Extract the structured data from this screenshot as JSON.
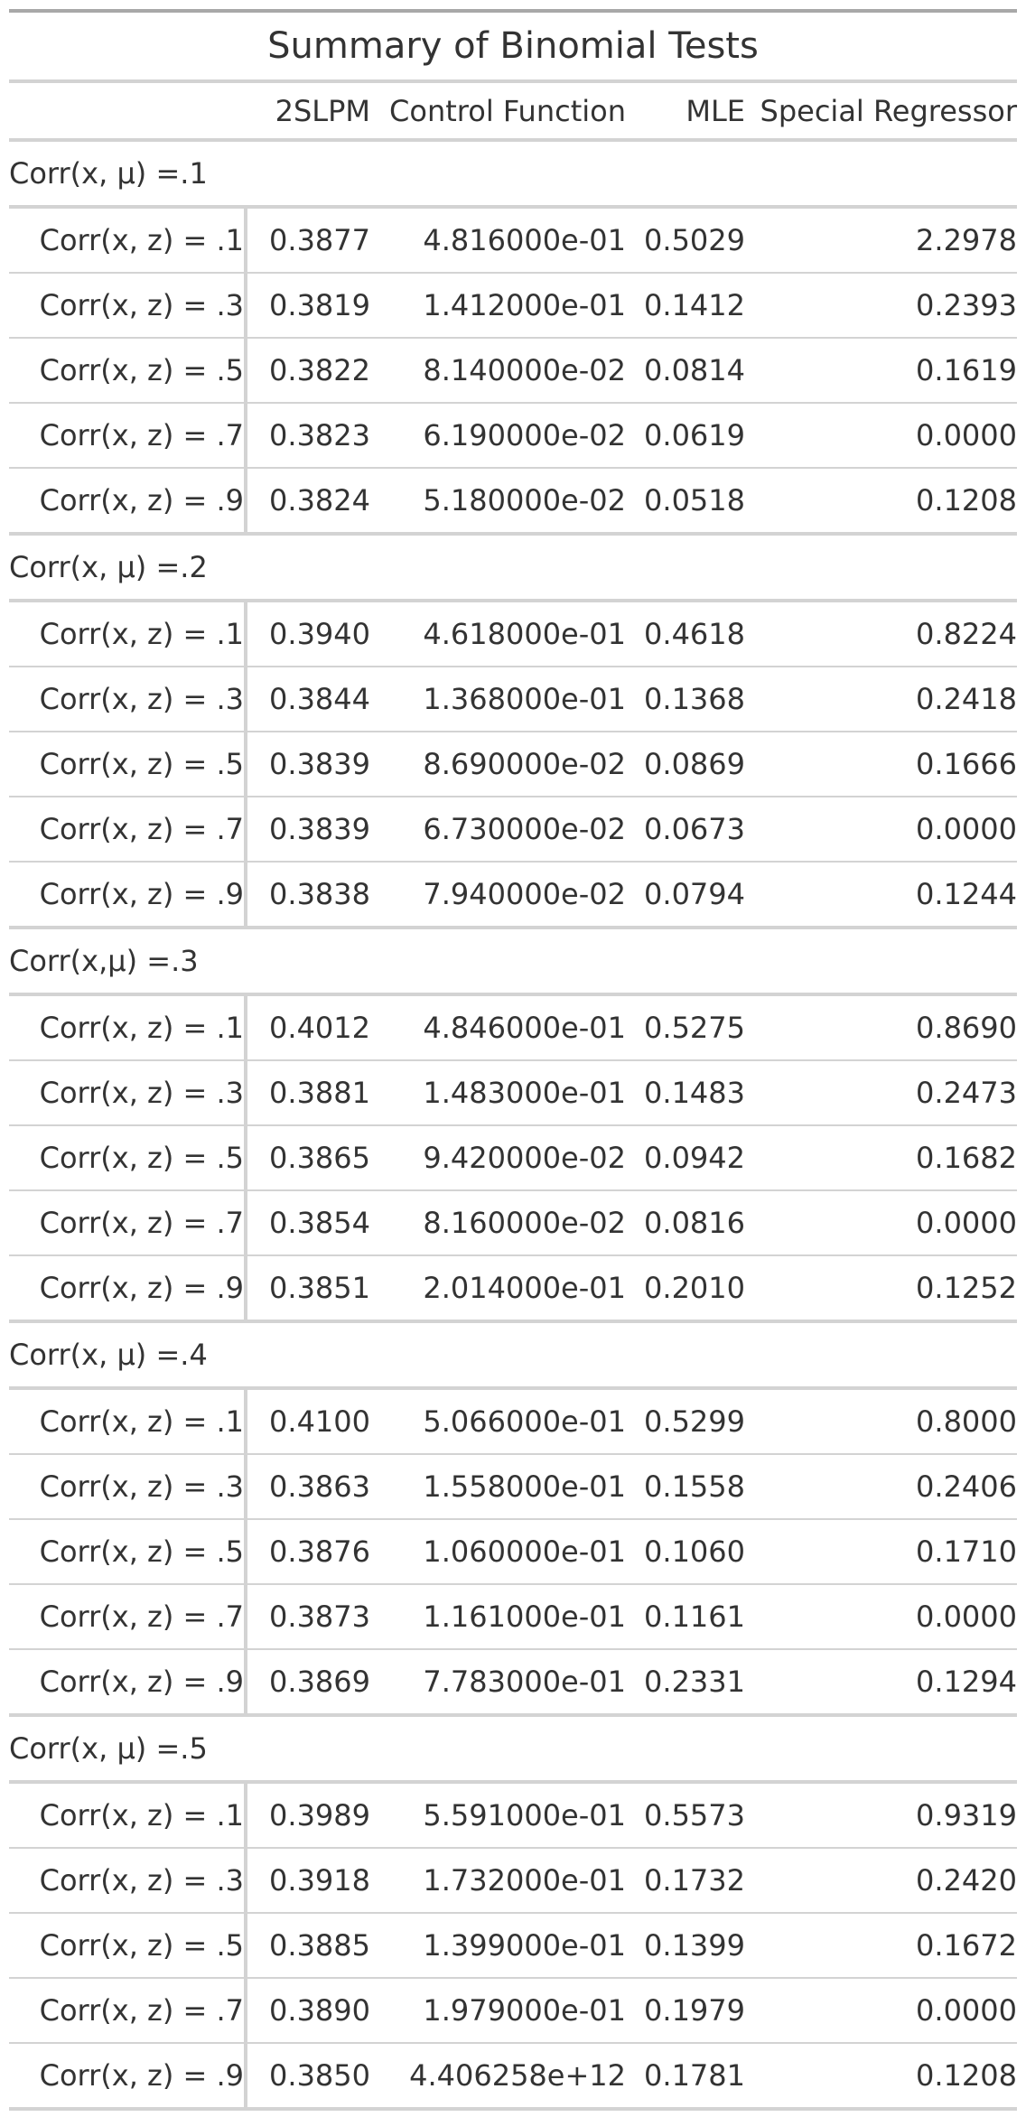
{
  "title": "Summary of Binomial Tests",
  "columns": [
    "",
    "2SLPM",
    "Control Function",
    "MLE",
    "Special Regressor"
  ],
  "groups": [
    {
      "label": "Corr(x, μ) =.1",
      "rows": [
        {
          "stub": "Corr(x, z) = .1",
          "values": [
            "0.3877",
            "4.816000e-01",
            "0.5029",
            "2.2978"
          ]
        },
        {
          "stub": "Corr(x, z) = .3",
          "values": [
            "0.3819",
            "1.412000e-01",
            "0.1412",
            "0.2393"
          ]
        },
        {
          "stub": "Corr(x, z) = .5",
          "values": [
            "0.3822",
            "8.140000e-02",
            "0.0814",
            "0.1619"
          ]
        },
        {
          "stub": "Corr(x, z) = .7",
          "values": [
            "0.3823",
            "6.190000e-02",
            "0.0619",
            "0.0000"
          ]
        },
        {
          "stub": "Corr(x, z) = .9",
          "values": [
            "0.3824",
            "5.180000e-02",
            "0.0518",
            "0.1208"
          ]
        }
      ]
    },
    {
      "label": "Corr(x, μ) =.2",
      "rows": [
        {
          "stub": "Corr(x, z) = .1",
          "values": [
            "0.3940",
            "4.618000e-01",
            "0.4618",
            "0.8224"
          ]
        },
        {
          "stub": "Corr(x, z) = .3",
          "values": [
            "0.3844",
            "1.368000e-01",
            "0.1368",
            "0.2418"
          ]
        },
        {
          "stub": "Corr(x, z) = .5",
          "values": [
            "0.3839",
            "8.690000e-02",
            "0.0869",
            "0.1666"
          ]
        },
        {
          "stub": "Corr(x, z) = .7",
          "values": [
            "0.3839",
            "6.730000e-02",
            "0.0673",
            "0.0000"
          ]
        },
        {
          "stub": "Corr(x, z) = .9",
          "values": [
            "0.3838",
            "7.940000e-02",
            "0.0794",
            "0.1244"
          ]
        }
      ]
    },
    {
      "label": "Corr(x,μ) =.3",
      "rows": [
        {
          "stub": "Corr(x, z) = .1",
          "values": [
            "0.4012",
            "4.846000e-01",
            "0.5275",
            "0.8690"
          ]
        },
        {
          "stub": "Corr(x, z) = .3",
          "values": [
            "0.3881",
            "1.483000e-01",
            "0.1483",
            "0.2473"
          ]
        },
        {
          "stub": "Corr(x, z) = .5",
          "values": [
            "0.3865",
            "9.420000e-02",
            "0.0942",
            "0.1682"
          ]
        },
        {
          "stub": "Corr(x, z) = .7",
          "values": [
            "0.3854",
            "8.160000e-02",
            "0.0816",
            "0.0000"
          ]
        },
        {
          "stub": "Corr(x, z) = .9",
          "values": [
            "0.3851",
            "2.014000e-01",
            "0.2010",
            "0.1252"
          ]
        }
      ]
    },
    {
      "label": "Corr(x, μ) =.4",
      "rows": [
        {
          "stub": "Corr(x, z) = .1",
          "values": [
            "0.4100",
            "5.066000e-01",
            "0.5299",
            "0.8000"
          ]
        },
        {
          "stub": "Corr(x, z) = .3",
          "values": [
            "0.3863",
            "1.558000e-01",
            "0.1558",
            "0.2406"
          ]
        },
        {
          "stub": "Corr(x, z) = .5",
          "values": [
            "0.3876",
            "1.060000e-01",
            "0.1060",
            "0.1710"
          ]
        },
        {
          "stub": "Corr(x, z) = .7",
          "values": [
            "0.3873",
            "1.161000e-01",
            "0.1161",
            "0.0000"
          ]
        },
        {
          "stub": "Corr(x, z) = .9",
          "values": [
            "0.3869",
            "7.783000e-01",
            "0.2331",
            "0.1294"
          ]
        }
      ]
    },
    {
      "label": "Corr(x, μ) =.5",
      "rows": [
        {
          "stub": "Corr(x, z) = .1",
          "values": [
            "0.3989",
            "5.591000e-01",
            "0.5573",
            "0.9319"
          ]
        },
        {
          "stub": "Corr(x, z) = .3",
          "values": [
            "0.3918",
            "1.732000e-01",
            "0.1732",
            "0.2420"
          ]
        },
        {
          "stub": "Corr(x, z) = .5",
          "values": [
            "0.3885",
            "1.399000e-01",
            "0.1399",
            "0.1672"
          ]
        },
        {
          "stub": "Corr(x, z) = .7",
          "values": [
            "0.3890",
            "1.979000e-01",
            "0.1979",
            "0.0000"
          ]
        },
        {
          "stub": "Corr(x, z) = .9",
          "values": [
            "0.3850",
            "4.406258e+12",
            "0.1781",
            "0.1208"
          ]
        }
      ]
    }
  ]
}
